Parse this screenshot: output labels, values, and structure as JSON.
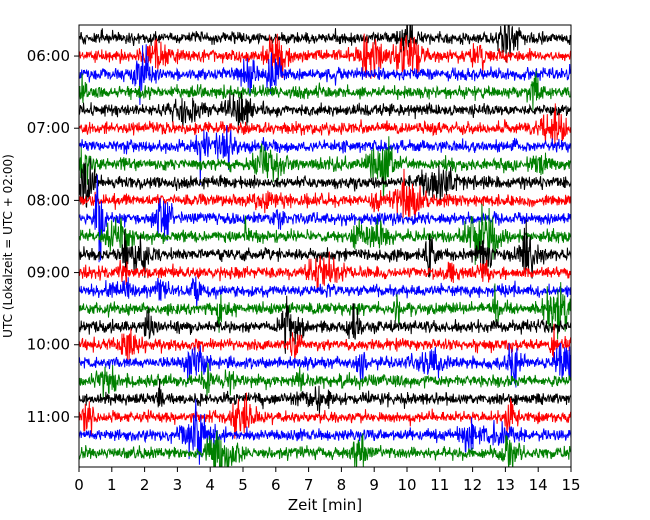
{
  "chart_data": {
    "type": "line",
    "title": "",
    "xlabel": "Zeit  [min]",
    "ylabel": "UTC (Lokalzeit = UTC + 02:00)",
    "xlim": [
      0,
      15
    ],
    "x_ticks": [
      0,
      1,
      2,
      3,
      4,
      5,
      6,
      7,
      8,
      9,
      10,
      11,
      12,
      13,
      14,
      15
    ],
    "y_tick_labels": [
      "06:00",
      "07:00",
      "08:00",
      "09:00",
      "10:00",
      "11:00"
    ],
    "trace_start": "05:45",
    "trace_end": "11:45",
    "trace_minutes": 15,
    "trace_count": 24,
    "trace_colors": [
      "#000000",
      "#ff0000",
      "#0000ff",
      "#008000"
    ],
    "grid": false,
    "legend": "none"
  }
}
